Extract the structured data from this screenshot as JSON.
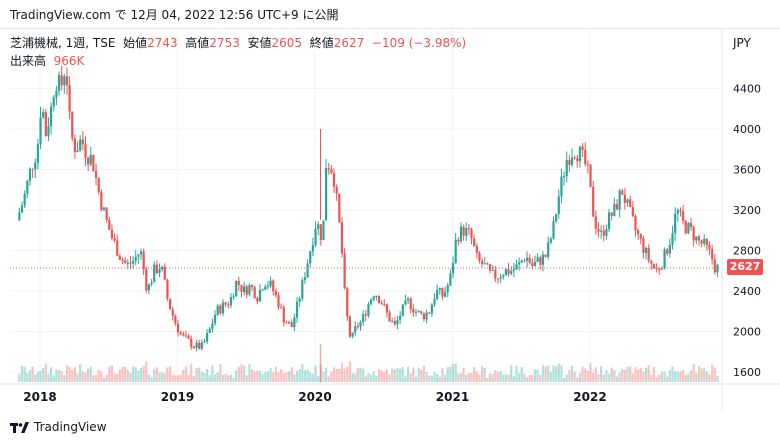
{
  "header": {
    "attribution": "TradingView.com で 12月 04, 2022 12:56 UTC+9 に公開"
  },
  "legend": {
    "symbol": "芝浦機械, 1週, TSE",
    "open_label": "始値",
    "open_value": "2743",
    "high_label": "高値",
    "high_value": "2753",
    "low_label": "安値",
    "low_value": "2605",
    "close_label": "終値",
    "close_value": "2627",
    "change": "−109 (−3.98%)",
    "volume_label": "出来高",
    "volume_value": "966K"
  },
  "axis": {
    "currency": "JPY",
    "last_price_tag": "2627"
  },
  "footer": {
    "brand": "TradingView"
  },
  "colors": {
    "up": "#26a69a",
    "down": "#ef5350",
    "grid": "#f0f3fa",
    "text": "#131722"
  },
  "chart_data": {
    "type": "candlestick",
    "interval": "weekly",
    "currency": "JPY",
    "y_ticks": [
      1600,
      2000,
      2400,
      2800,
      3200,
      3600,
      4000,
      4400
    ],
    "ylim": [
      1450,
      4720
    ],
    "x_ticks": [
      "2018",
      "2019",
      "2020",
      "2021",
      "2022"
    ],
    "last_close": 2627,
    "price_path": [
      [
        2017.85,
        3100
      ],
      [
        2017.9,
        3300
      ],
      [
        2017.95,
        3600
      ],
      [
        2018.0,
        3800
      ],
      [
        2018.03,
        4300
      ],
      [
        2018.06,
        3950
      ],
      [
        2018.1,
        4200
      ],
      [
        2018.13,
        4500
      ],
      [
        2018.17,
        4400
      ],
      [
        2018.2,
        4600
      ],
      [
        2018.22,
        4450
      ],
      [
        2018.24,
        3950
      ],
      [
        2018.28,
        3800
      ],
      [
        2018.32,
        3900
      ],
      [
        2018.36,
        3750
      ],
      [
        2018.4,
        3700
      ],
      [
        2018.45,
        3350
      ],
      [
        2018.5,
        3100
      ],
      [
        2018.55,
        2900
      ],
      [
        2018.6,
        2750
      ],
      [
        2018.65,
        2650
      ],
      [
        2018.7,
        2700
      ],
      [
        2018.75,
        2800
      ],
      [
        2018.8,
        2400
      ],
      [
        2018.85,
        2600
      ],
      [
        2018.9,
        2650
      ],
      [
        2018.95,
        2300
      ],
      [
        2019.0,
        2100
      ],
      [
        2019.05,
        1950
      ],
      [
        2019.1,
        1900
      ],
      [
        2019.15,
        1850
      ],
      [
        2019.2,
        1850
      ],
      [
        2019.25,
        2000
      ],
      [
        2019.3,
        2200
      ],
      [
        2019.35,
        2250
      ],
      [
        2019.4,
        2300
      ],
      [
        2019.45,
        2500
      ],
      [
        2019.5,
        2400
      ],
      [
        2019.55,
        2450
      ],
      [
        2019.6,
        2350
      ],
      [
        2019.65,
        2500
      ],
      [
        2019.7,
        2450
      ],
      [
        2019.75,
        2300
      ],
      [
        2019.8,
        2100
      ],
      [
        2019.85,
        2050
      ],
      [
        2019.9,
        2300
      ],
      [
        2019.95,
        2600
      ],
      [
        2020.0,
        2900
      ],
      [
        2020.03,
        3100
      ],
      [
        2020.06,
        2950
      ],
      [
        2020.08,
        3050
      ],
      [
        2020.1,
        3650
      ],
      [
        2020.13,
        3650
      ],
      [
        2020.16,
        3500
      ],
      [
        2020.2,
        3000
      ],
      [
        2020.22,
        2700
      ],
      [
        2020.24,
        2250
      ],
      [
        2020.28,
        1900
      ],
      [
        2020.32,
        2050
      ],
      [
        2020.36,
        2100
      ],
      [
        2020.4,
        2250
      ],
      [
        2020.45,
        2400
      ],
      [
        2020.5,
        2300
      ],
      [
        2020.55,
        2150
      ],
      [
        2020.6,
        2050
      ],
      [
        2020.65,
        2200
      ],
      [
        2020.7,
        2300
      ],
      [
        2020.75,
        2200
      ],
      [
        2020.8,
        2150
      ],
      [
        2020.85,
        2200
      ],
      [
        2020.9,
        2400
      ],
      [
        2020.95,
        2350
      ],
      [
        2021.0,
        2500
      ],
      [
        2021.05,
        2950
      ],
      [
        2021.1,
        3000
      ],
      [
        2021.15,
        2950
      ],
      [
        2021.2,
        2700
      ],
      [
        2021.25,
        2650
      ],
      [
        2021.3,
        2550
      ],
      [
        2021.35,
        2550
      ],
      [
        2021.4,
        2600
      ],
      [
        2021.45,
        2600
      ],
      [
        2021.5,
        2650
      ],
      [
        2021.55,
        2750
      ],
      [
        2021.6,
        2650
      ],
      [
        2021.65,
        2700
      ],
      [
        2021.7,
        2750
      ],
      [
        2021.75,
        3000
      ],
      [
        2021.8,
        3400
      ],
      [
        2021.85,
        3700
      ],
      [
        2021.9,
        3800
      ],
      [
        2021.95,
        3750
      ],
      [
        2022.0,
        3600
      ],
      [
        2022.05,
        3100
      ],
      [
        2022.1,
        2950
      ],
      [
        2022.15,
        3100
      ],
      [
        2022.2,
        3200
      ],
      [
        2022.25,
        3400
      ],
      [
        2022.3,
        3200
      ],
      [
        2022.35,
        3000
      ],
      [
        2022.4,
        2850
      ],
      [
        2022.45,
        2700
      ],
      [
        2022.5,
        2600
      ],
      [
        2022.55,
        2700
      ],
      [
        2022.6,
        2900
      ],
      [
        2022.65,
        3200
      ],
      [
        2022.7,
        3050
      ],
      [
        2022.75,
        3000
      ],
      [
        2022.8,
        2900
      ],
      [
        2022.85,
        2850
      ],
      [
        2022.9,
        2750
      ],
      [
        2022.93,
        2627
      ]
    ]
  }
}
